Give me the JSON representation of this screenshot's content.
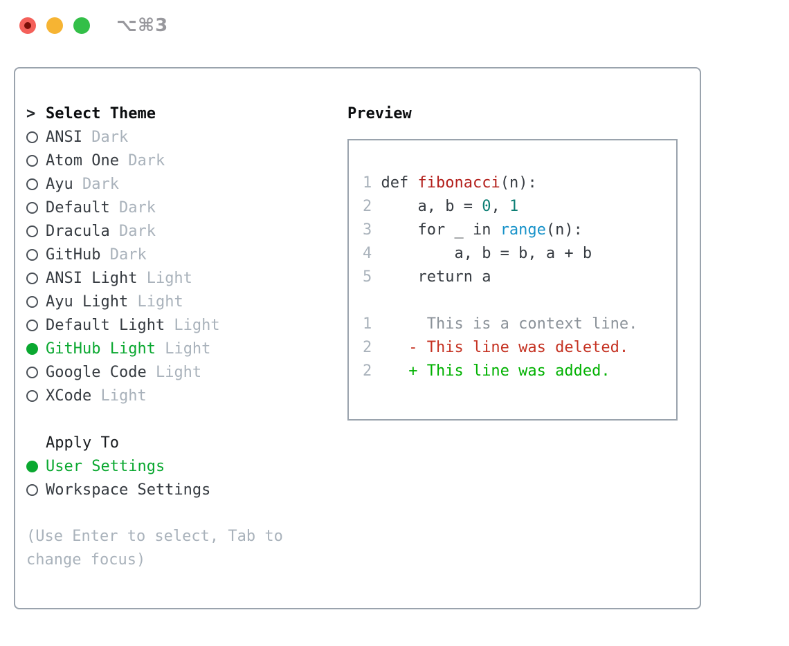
{
  "window": {
    "title": "⌥⌘3",
    "traffic_lights": [
      "close",
      "minimize",
      "zoom"
    ]
  },
  "picker": {
    "cursor": ">",
    "title": "Select Theme",
    "themes": [
      {
        "name": "ANSI",
        "variant": "Dark",
        "selected": false
      },
      {
        "name": "Atom One",
        "variant": "Dark",
        "selected": false
      },
      {
        "name": "Ayu",
        "variant": "Dark",
        "selected": false
      },
      {
        "name": "Default",
        "variant": "Dark",
        "selected": false
      },
      {
        "name": "Dracula",
        "variant": "Dark",
        "selected": false
      },
      {
        "name": "GitHub",
        "variant": "Dark",
        "selected": false
      },
      {
        "name": "ANSI Light",
        "variant": "Light",
        "selected": false
      },
      {
        "name": "Ayu Light",
        "variant": "Light",
        "selected": false
      },
      {
        "name": "Default Light",
        "variant": "Light",
        "selected": false
      },
      {
        "name": "GitHub Light",
        "variant": "Light",
        "selected": true
      },
      {
        "name": "Google Code",
        "variant": "Light",
        "selected": false
      },
      {
        "name": "XCode",
        "variant": "Light",
        "selected": false
      }
    ],
    "apply_to": {
      "label": "Apply To",
      "options": [
        {
          "label": "User Settings",
          "selected": true
        },
        {
          "label": "Workspace Settings",
          "selected": false
        }
      ]
    },
    "help_text": "(Use Enter to select, Tab to change focus)"
  },
  "preview": {
    "title": "Preview",
    "code_lines": [
      {
        "num": "1",
        "tokens": [
          [
            "p",
            " def "
          ],
          [
            "fn",
            "fibonacci"
          ],
          [
            "p",
            "(n):"
          ]
        ]
      },
      {
        "num": "2",
        "tokens": [
          [
            "p",
            "     a, b = "
          ],
          [
            "n",
            "0"
          ],
          [
            "p",
            ", "
          ],
          [
            "n",
            "1"
          ]
        ]
      },
      {
        "num": "3",
        "tokens": [
          [
            "p",
            "     for _ in "
          ],
          [
            "c",
            "range"
          ],
          [
            "p",
            "(n):"
          ]
        ]
      },
      {
        "num": "4",
        "tokens": [
          [
            "p",
            "         a, b = b, a + b"
          ]
        ]
      },
      {
        "num": "5",
        "tokens": [
          [
            "p",
            "     return a"
          ]
        ]
      }
    ],
    "diff_lines": [
      {
        "num": "1",
        "kind": "ctx",
        "text": "      This is a context line."
      },
      {
        "num": "2",
        "kind": "del",
        "text": "    - This line was deleted."
      },
      {
        "num": "2",
        "kind": "add",
        "text": "    + This line was added."
      }
    ]
  },
  "colors": {
    "accent_green": "#0aa830",
    "added_green": "#00b100",
    "deleted_red": "#c53222",
    "function_red": "#b3201c",
    "number_teal": "#0c7e74",
    "builtin_blue": "#1792c9",
    "muted_gray": "#a9b2bb",
    "context_gray": "#8b9299",
    "text_dark": "#363b41",
    "border_gray": "#9aa3ad",
    "traffic_red": "#f4605a",
    "traffic_yellow": "#f6b433",
    "traffic_green": "#33bf48",
    "title_gray": "#98989d"
  }
}
